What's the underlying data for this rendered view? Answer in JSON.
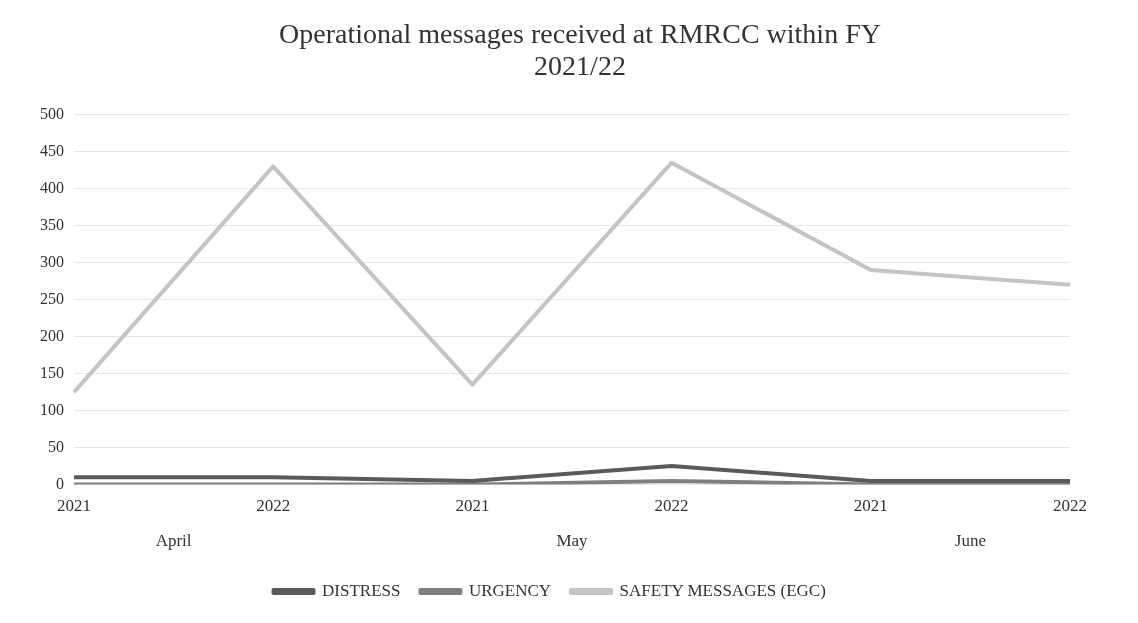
{
  "chart_data": {
    "type": "line",
    "title": "Operational messages received at RMRCC within FY 2021/22",
    "categories": [
      "2021",
      "2022",
      "2021",
      "2022",
      "2021",
      "2022"
    ],
    "annotations": [
      "April",
      "May",
      "June"
    ],
    "series": [
      {
        "name": "DISTRESS",
        "color": "#5a5a5a",
        "values": [
          10,
          10,
          5,
          25,
          5,
          5
        ]
      },
      {
        "name": "URGENCY",
        "color": "#7f7f7f",
        "values": [
          0,
          0,
          0,
          5,
          0,
          0
        ]
      },
      {
        "name": "SAFETY MESSAGES (EGC)",
        "color": "#c4c4c4",
        "values": [
          125,
          430,
          135,
          435,
          290,
          270
        ]
      }
    ],
    "ylim": [
      0,
      500
    ],
    "yticks": [
      0,
      50,
      100,
      150,
      200,
      250,
      300,
      350,
      400,
      450,
      500
    ],
    "grid": "y",
    "legend": "bottom",
    "marker": "none",
    "line_style": "solid"
  }
}
